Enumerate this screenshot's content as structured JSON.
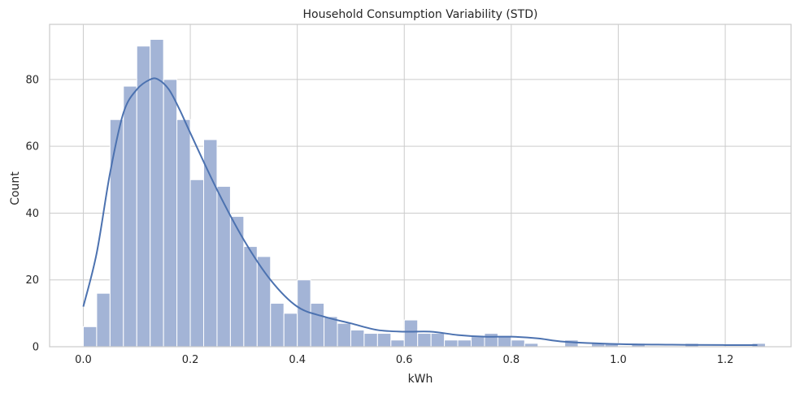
{
  "chart_data": {
    "type": "bar",
    "title": "Household Consumption Variability (STD)",
    "xlabel": "kWh",
    "ylabel": "Count",
    "bin_width": 0.025,
    "bins_start": 0.0,
    "values": [
      6,
      16,
      68,
      78,
      90,
      92,
      80,
      68,
      50,
      62,
      48,
      39,
      30,
      27,
      13,
      10,
      20,
      13,
      9,
      7,
      5,
      4,
      4,
      2,
      8,
      4,
      4,
      2,
      2,
      3,
      4,
      3,
      2,
      1,
      0,
      0,
      2,
      0,
      1,
      1,
      0,
      1,
      0,
      0,
      0,
      1,
      0,
      0,
      0,
      0,
      1
    ],
    "kde": {
      "x": [
        0.0,
        0.025,
        0.05,
        0.075,
        0.1,
        0.125,
        0.14,
        0.16,
        0.18,
        0.2,
        0.25,
        0.3,
        0.35,
        0.4,
        0.45,
        0.5,
        0.55,
        0.6,
        0.65,
        0.7,
        0.75,
        0.8,
        0.85,
        0.9,
        1.0,
        1.1,
        1.2,
        1.26
      ],
      "y": [
        12,
        28,
        52,
        70,
        77,
        80,
        80,
        77,
        71,
        64,
        47,
        32,
        20,
        12,
        9,
        7,
        5,
        4.5,
        4.5,
        3.5,
        3,
        3,
        2.5,
        1.5,
        0.8,
        0.6,
        0.5,
        0.5
      ]
    },
    "xlim": [
      -0.063,
      1.323
    ],
    "ylim": [
      0,
      96.5
    ],
    "xticks": [
      0.0,
      0.2,
      0.4,
      0.6,
      0.8,
      1.0,
      1.2
    ],
    "xtick_labels": [
      "0.0",
      "0.2",
      "0.4",
      "0.6",
      "0.8",
      "1.0",
      "1.2"
    ],
    "yticks": [
      0,
      20,
      40,
      60,
      80
    ],
    "ytick_labels": [
      "0",
      "20",
      "40",
      "60",
      "80"
    ],
    "grid": true,
    "colors": {
      "bar_fill": "#a3b4d6",
      "bar_edge": "#ffffff",
      "kde_line": "#4c72b0",
      "grid": "#cccccc",
      "axes_edge": "#cccccc",
      "text": "#262626"
    }
  }
}
